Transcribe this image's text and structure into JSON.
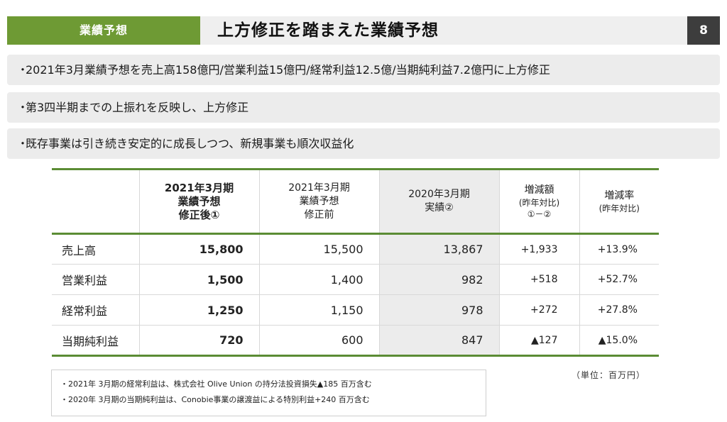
{
  "header": {
    "section": "業績予想",
    "title": "上方修正を踏まえた業績予想",
    "page_number": "8"
  },
  "bullets": [
    "2021年3月業績予想を売上高158億円/営業利益15億円/経常利益12.5億/当期純利益7.2億円に上方修正",
    "第3四半期までの上振れを反映し、上方修正",
    "既存事業は引き続き安定的に成長しつつ、新規事業も順次収益化"
  ],
  "table": {
    "headers": [
      {
        "lines": [
          "",
          "",
          ""
        ]
      },
      {
        "lines": [
          "2021年3月期",
          "業績予想",
          "修正後①"
        ]
      },
      {
        "lines": [
          "2021年3月期",
          "業績予想",
          "修正前"
        ]
      },
      {
        "lines": [
          "2020年3月期",
          "実績②",
          ""
        ]
      },
      {
        "lines": [
          "増減額",
          "(昨年対比)",
          "①－②"
        ]
      },
      {
        "lines": [
          "増減率",
          "(昨年対比)",
          ""
        ]
      }
    ],
    "rows": [
      {
        "label": "売上高",
        "revised": "15,800",
        "previous": "15,500",
        "actual": "13,867",
        "diff": "+1,933",
        "rate": "+13.9%"
      },
      {
        "label": "営業利益",
        "revised": "1,500",
        "previous": "1,400",
        "actual": "982",
        "diff": "+518",
        "rate": "+52.7%"
      },
      {
        "label": "経常利益",
        "revised": "1,250",
        "previous": "1,150",
        "actual": "978",
        "diff": "+272",
        "rate": "+27.8%"
      },
      {
        "label": "当期純利益",
        "revised": "720",
        "previous": "600",
        "actual": "847",
        "diff": "▲127",
        "rate": "▲15.0%"
      }
    ]
  },
  "notes": [
    "・2021年 3月期の経常利益は、株式会社 Olive Union の持分法投資損失▲185 百万含む",
    "・2020年 3月期の当期純利益は、Conobie事業の譲渡益による特別利益+240 百万含む"
  ],
  "unit_label": "（単位：百万円）",
  "colors": {
    "accent_green": "#6e9a34",
    "page_number_bg": "#3d3d3d",
    "bullet_bg": "#ececec"
  }
}
